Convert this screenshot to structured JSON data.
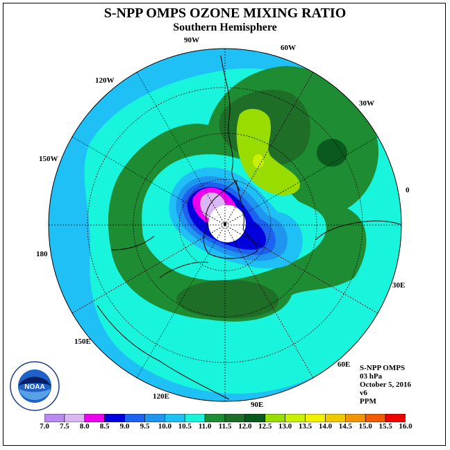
{
  "title": "S-NPP OMPS OZONE MIXING RATIO",
  "subtitle": "Southern Hemisphere",
  "longitude_labels": [
    "90W",
    "60W",
    "30W",
    "0",
    "30E",
    "60E",
    "90E",
    "120E",
    "150E",
    "180",
    "150W",
    "120W"
  ],
  "info": {
    "instrument": "S-NPP OMPS",
    "level": "03 hPa",
    "date": "October 5, 2016",
    "version": "v6",
    "units": "PPM"
  },
  "logo_text": "NOAA",
  "colorbar": {
    "labels": [
      "7.0",
      "7.5",
      "8.0",
      "8.5",
      "9.0",
      "9.5",
      "10.0",
      "10.5",
      "11.0",
      "11.5",
      "12.0",
      "12.5",
      "13.0",
      "13.5",
      "14.0",
      "14.5",
      "15.0",
      "15.5",
      "16.0"
    ],
    "colors": [
      "#b98af0",
      "#dab6f2",
      "#ee00ee",
      "#0000dd",
      "#1e62f0",
      "#1e96f0",
      "#1ec0f5",
      "#19f5dd",
      "#1e8c32",
      "#1e6e28",
      "#0a5a1e",
      "#99dd00",
      "#c8f000",
      "#f0f000",
      "#f0c800",
      "#f09600",
      "#f05a00",
      "#f00000",
      "#785032"
    ]
  },
  "colors": {
    "background_ring": "#1ec0f5",
    "mid_field": "#19f5dd",
    "collar": "#1e8c32",
    "collar_dark": "#1e6e28",
    "vortex_core": "#0000dd",
    "pole_missing": "#ffffff"
  }
}
